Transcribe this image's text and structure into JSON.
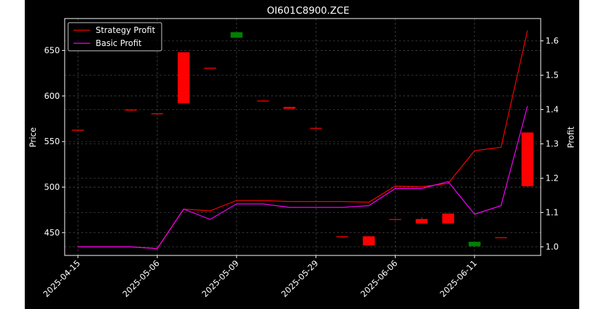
{
  "chart_data": {
    "type": "candlestick+line",
    "title": "OI601C8900.ZCE",
    "xlabel": "",
    "ylabel_left": "Price",
    "ylabel_right": "Profit",
    "ylim_left": [
      425,
      685
    ],
    "ylim_right": [
      0.975,
      1.665
    ],
    "yticks_left": [
      450,
      500,
      550,
      600,
      650
    ],
    "yticks_right": [
      1.0,
      1.1,
      1.2,
      1.3,
      1.4,
      1.5,
      1.6
    ],
    "grid": true,
    "legend_position": "upper-left",
    "x_tick_labels": [
      "2025-04-15",
      "2025-05-06",
      "2025-05-09",
      "2025-05-29",
      "2025-06-06",
      "2025-06-11"
    ],
    "x_tick_indices": [
      0,
      3,
      6,
      9,
      12,
      15
    ],
    "colors": {
      "up": "#008000",
      "down": "#ff0000",
      "strategy": "#ff0000",
      "basic": "#ff00ff",
      "background": "#000000",
      "text": "#ffffff",
      "grid": "#808080"
    },
    "candles": [
      {
        "i": 0,
        "open": 563,
        "close": 562,
        "high": 563,
        "low": 562
      },
      {
        "i": 2,
        "open": 585,
        "close": 584,
        "high": 585,
        "low": 584
      },
      {
        "i": 3,
        "open": 581,
        "close": 580,
        "high": 581,
        "low": 580
      },
      {
        "i": 4,
        "open": 648,
        "close": 592,
        "high": 648,
        "low": 592
      },
      {
        "i": 5,
        "open": 631,
        "close": 630,
        "high": 631,
        "low": 630
      },
      {
        "i": 6,
        "open": 664,
        "close": 670,
        "high": 670,
        "low": 664
      },
      {
        "i": 7,
        "open": 595,
        "close": 594,
        "high": 595,
        "low": 594
      },
      {
        "i": 8,
        "open": 588,
        "close": 586,
        "high": 588,
        "low": 586
      },
      {
        "i": 9,
        "open": 565,
        "close": 564,
        "high": 565,
        "low": 564
      },
      {
        "i": 10,
        "open": 446,
        "close": 445,
        "high": 446,
        "low": 445
      },
      {
        "i": 11,
        "open": 446,
        "close": 436,
        "high": 446,
        "low": 436
      },
      {
        "i": 12,
        "open": 465,
        "close": 464,
        "high": 465,
        "low": 464
      },
      {
        "i": 13,
        "open": 465,
        "close": 460,
        "high": 467,
        "low": 460
      },
      {
        "i": 14,
        "open": 471,
        "close": 460,
        "high": 471,
        "low": 460
      },
      {
        "i": 15,
        "open": 435,
        "close": 440,
        "high": 440,
        "low": 435
      },
      {
        "i": 16,
        "open": 445,
        "close": 444,
        "high": 445,
        "low": 444
      },
      {
        "i": 17,
        "open": 560,
        "close": 501,
        "high": 560,
        "low": 500
      }
    ],
    "series": [
      {
        "name": "Strategy Profit",
        "axis": "right",
        "x": [
          0,
          1,
          2,
          3,
          4,
          5,
          6,
          7,
          8,
          9,
          10,
          11,
          12,
          13,
          14,
          15,
          16,
          17
        ],
        "values": [
          1.0,
          1.0,
          1.0,
          0.995,
          1.11,
          1.105,
          1.135,
          1.135,
          1.132,
          1.132,
          1.132,
          1.13,
          1.177,
          1.175,
          1.185,
          1.28,
          1.29,
          1.63
        ]
      },
      {
        "name": "Basic Profit",
        "axis": "right",
        "x": [
          0,
          1,
          2,
          3,
          4,
          5,
          6,
          7,
          8,
          9,
          10,
          11,
          12,
          13,
          14,
          15,
          16,
          17
        ],
        "values": [
          1.0,
          1.0,
          1.0,
          0.995,
          1.11,
          1.08,
          1.125,
          1.125,
          1.115,
          1.115,
          1.115,
          1.12,
          1.17,
          1.17,
          1.19,
          1.095,
          1.12,
          1.41
        ]
      }
    ]
  }
}
